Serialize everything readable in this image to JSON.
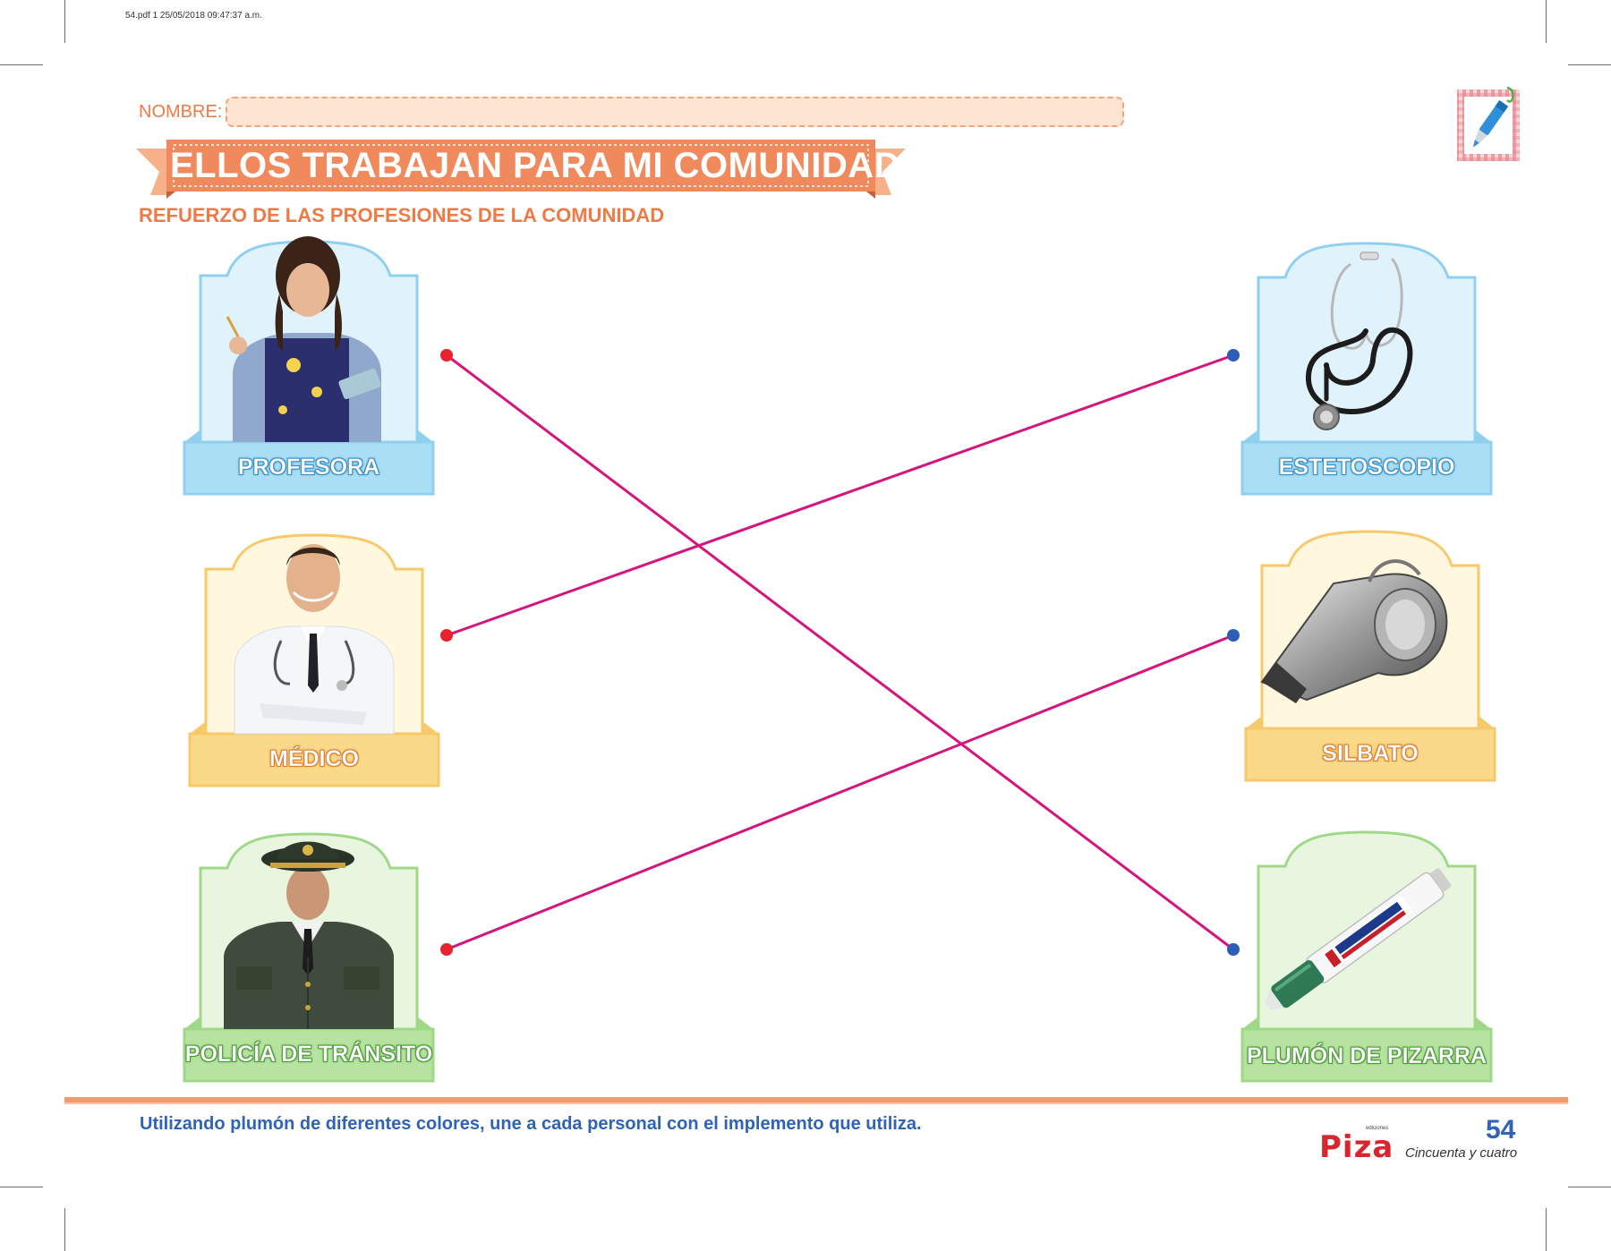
{
  "file_info": "54.pdf  1  25/05/2018  09:47:37 a.m.",
  "header": {
    "nombre_label": "NOMBRE:",
    "title": "ELLOS TRABAJAN PARA MI COMUNIDAD",
    "subtitle": "REFUERZO DE LAS PROFESIONES DE LA COMUNIDAD"
  },
  "left_cards": [
    {
      "label": "PROFESORA",
      "color": "#a9def5",
      "picture": "teacher"
    },
    {
      "label": "MÉDICO",
      "color": "#fbd98a",
      "picture": "doctor"
    },
    {
      "label": "POLICÍA DE TRÁNSITO",
      "color": "#b7e3a0",
      "picture": "police"
    }
  ],
  "right_cards": [
    {
      "label": "ESTETOSCOPIO",
      "color": "#a9def5",
      "picture": "stethoscope"
    },
    {
      "label": "SILBATO",
      "color": "#fbd98a",
      "picture": "whistle"
    },
    {
      "label": "PLUMÓN DE PIZARRA",
      "color": "#b7e3a0",
      "picture": "marker"
    }
  ],
  "connections": {
    "line_color": "#d4157d",
    "left_dot_color": "#e8232f",
    "right_dot_color": "#2e5db8",
    "pairs": [
      {
        "from": "PROFESORA",
        "to": "PLUMÓN DE PIZARRA"
      },
      {
        "from": "MÉDICO",
        "to": "ESTETOSCOPIO"
      },
      {
        "from": "POLICÍA DE TRÁNSITO",
        "to": "SILBATO"
      }
    ]
  },
  "footer": {
    "instruction": "Utilizando plumón de diferentes colores, une a cada personal con el implemento que utiliza.",
    "logo_small": "ediciones",
    "logo_text": "Piza",
    "page_number": "54",
    "page_words": "Cincuenta y cuatro"
  }
}
